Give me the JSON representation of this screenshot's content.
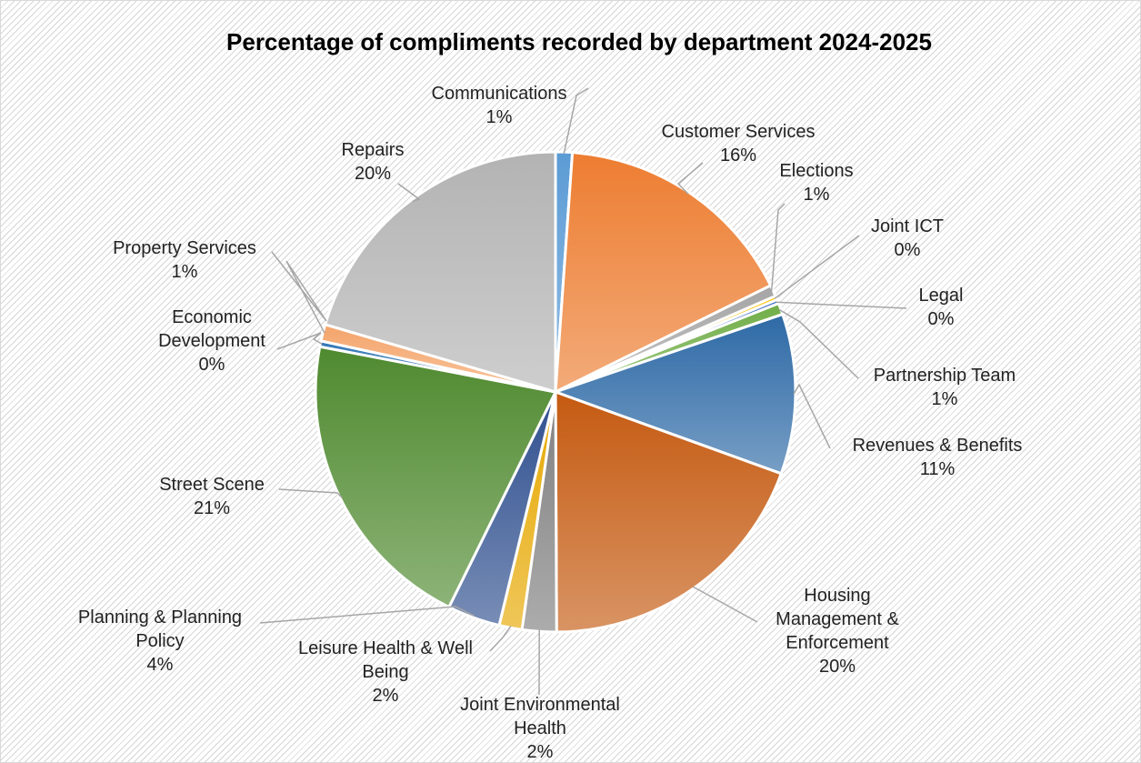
{
  "chart_data": {
    "type": "pie",
    "title": "Percentage of compliments recorded by department 2024-2025",
    "slices": [
      {
        "name": "Communications",
        "value": 1,
        "label": "1%",
        "color": "#5b9bd5"
      },
      {
        "name": "Customer Services",
        "value": 16,
        "label": "16%",
        "color": "#ed7d31"
      },
      {
        "name": "Elections",
        "value": 1,
        "label": "1%",
        "color": "#a5a5a5"
      },
      {
        "name": "Joint ICT",
        "value": 0,
        "label": "0%",
        "color": "#ffc000"
      },
      {
        "name": "Legal",
        "value": 0,
        "label": "0%",
        "color": "#4472c4"
      },
      {
        "name": "Partnership Team",
        "value": 1,
        "label": "1%",
        "color": "#70ad47"
      },
      {
        "name": "Revenues & Benefits",
        "value": 11,
        "label": "11%",
        "color": "#2e6aa6"
      },
      {
        "name": "Housing Management & Enforcement",
        "value": 20,
        "label": "20%",
        "color": "#c55a11"
      },
      {
        "name": "Joint Environmental Health",
        "value": 2,
        "label": "2%",
        "color": "#7f7f7f"
      },
      {
        "name": "Leisure Health & Well Being",
        "value": 2,
        "label": "2%",
        "color": "#e6a800"
      },
      {
        "name": "Planning & Planning Policy",
        "value": 4,
        "label": "4%",
        "color": "#2f4f8f"
      },
      {
        "name": "Street Scene",
        "value": 21,
        "label": "21%",
        "color": "#4f8a2f"
      },
      {
        "name": "Economic Development",
        "value": 0,
        "label": "0%",
        "color": "#2f75b5"
      },
      {
        "name": "Property Services",
        "value": 1,
        "label": "1%",
        "color": "#f4a46a"
      },
      {
        "name": "Repairs",
        "value": 20,
        "label": "20%",
        "color": "#b3b3b3"
      }
    ],
    "display_angles": [
      1.9,
      28.0,
      1.3,
      0.45,
      0.45,
      1.3,
      18.2,
      32.8,
      3.9,
      2.6,
      6.0,
      35.0,
      0.65,
      1.9,
      34.6
    ],
    "label_lines": [
      [
        "Communications",
        "1%"
      ],
      [
        "Customer Services",
        "16%"
      ],
      [
        "Elections",
        "1%"
      ],
      [
        "Joint ICT",
        "0%"
      ],
      [
        "Legal",
        "0%"
      ],
      [
        "Partnership Team",
        "1%"
      ],
      [
        "Revenues & Benefits",
        "11%"
      ],
      [
        "Housing",
        "Management &",
        "Enforcement",
        "20%"
      ],
      [
        "Joint Environmental",
        "Health",
        "2%"
      ],
      [
        "Leisure Health & Well",
        "Being",
        "2%"
      ],
      [
        "Planning & Planning",
        "Policy",
        "4%"
      ],
      [
        "Street Scene",
        "21%"
      ],
      [
        "Economic",
        "Development",
        "0%"
      ],
      [
        "Property Services",
        "1%"
      ],
      [
        "Repairs",
        "20%"
      ]
    ],
    "legend": "none",
    "data_labels": "outside-with-leader-lines"
  }
}
